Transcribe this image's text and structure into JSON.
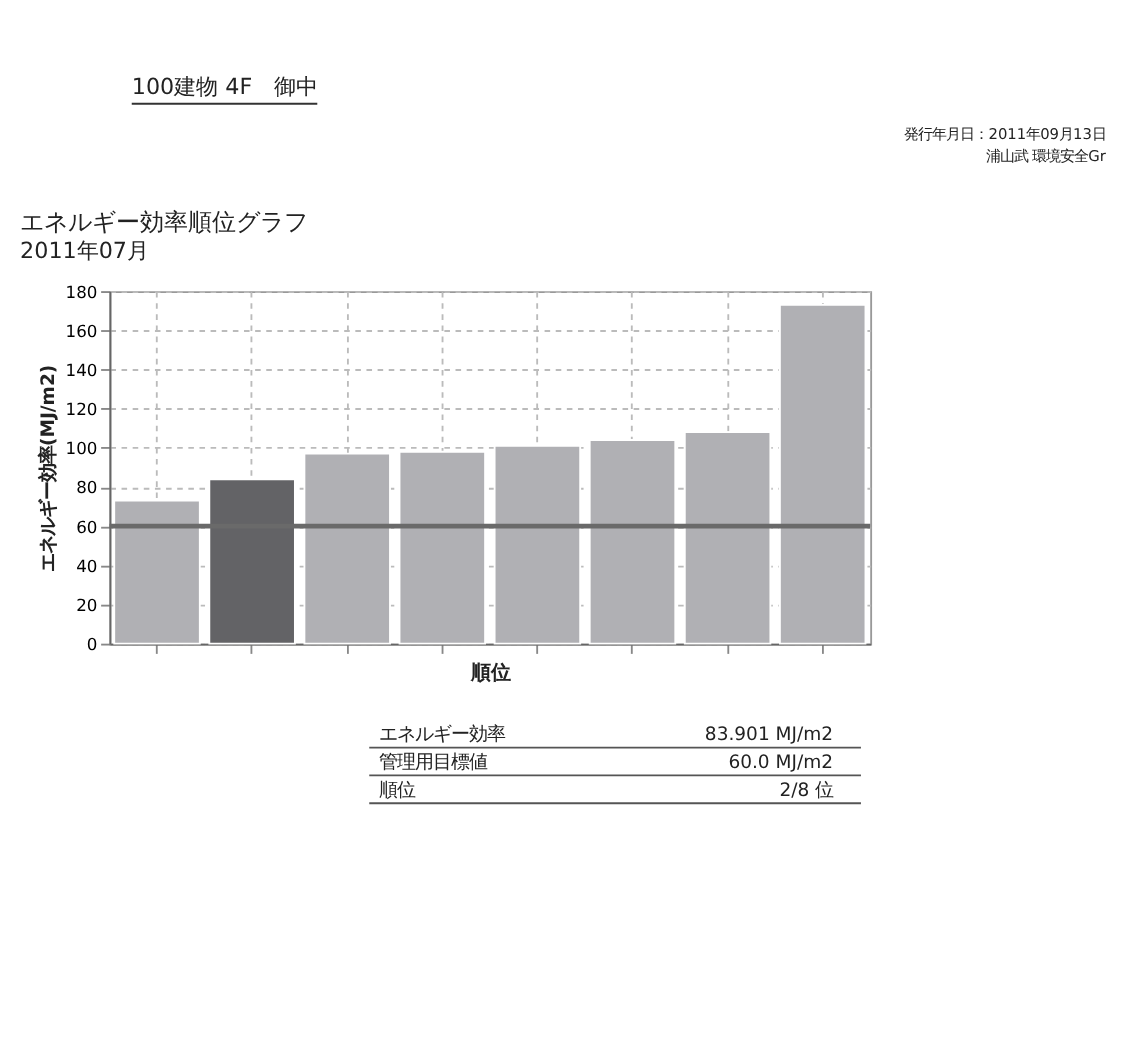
{
  "chart_data": {
    "type": "bar",
    "title": "エネルギー効率順位グラフ",
    "subtitle": "2011年07月",
    "ylabel": "エネルギー効率(MJ/m2)",
    "xlabel": "順位",
    "categories": [
      null,
      null,
      null,
      null,
      null,
      null,
      null,
      null
    ],
    "values": [
      73,
      83.901,
      97,
      98,
      101,
      104,
      108,
      173
    ],
    "colors": [
      "#b0b0b4",
      "#636366",
      "#b0b0b4",
      "#b0b0b4",
      "#b0b0b4",
      "#b0b0b4",
      "#b0b0b4",
      "#b0b0b4"
    ],
    "ylim": [
      0,
      180
    ],
    "yticks": [
      0,
      20,
      40,
      60,
      80,
      100,
      120,
      140,
      160,
      180
    ],
    "grid": true,
    "ref_lines": [
      {
        "axis": "y",
        "value": 60,
        "color": "#6a6a6a"
      }
    ],
    "annotations": [
      "100建物 4F　御中",
      "発行年月日：2011年09月13日",
      "浦山武 環境安全Gr",
      "エネルギー効率",
      "83.901 MJ/m2",
      "管理用目標値",
      "60.0 MJ/m2",
      "順位",
      "2/8 位"
    ]
  }
}
